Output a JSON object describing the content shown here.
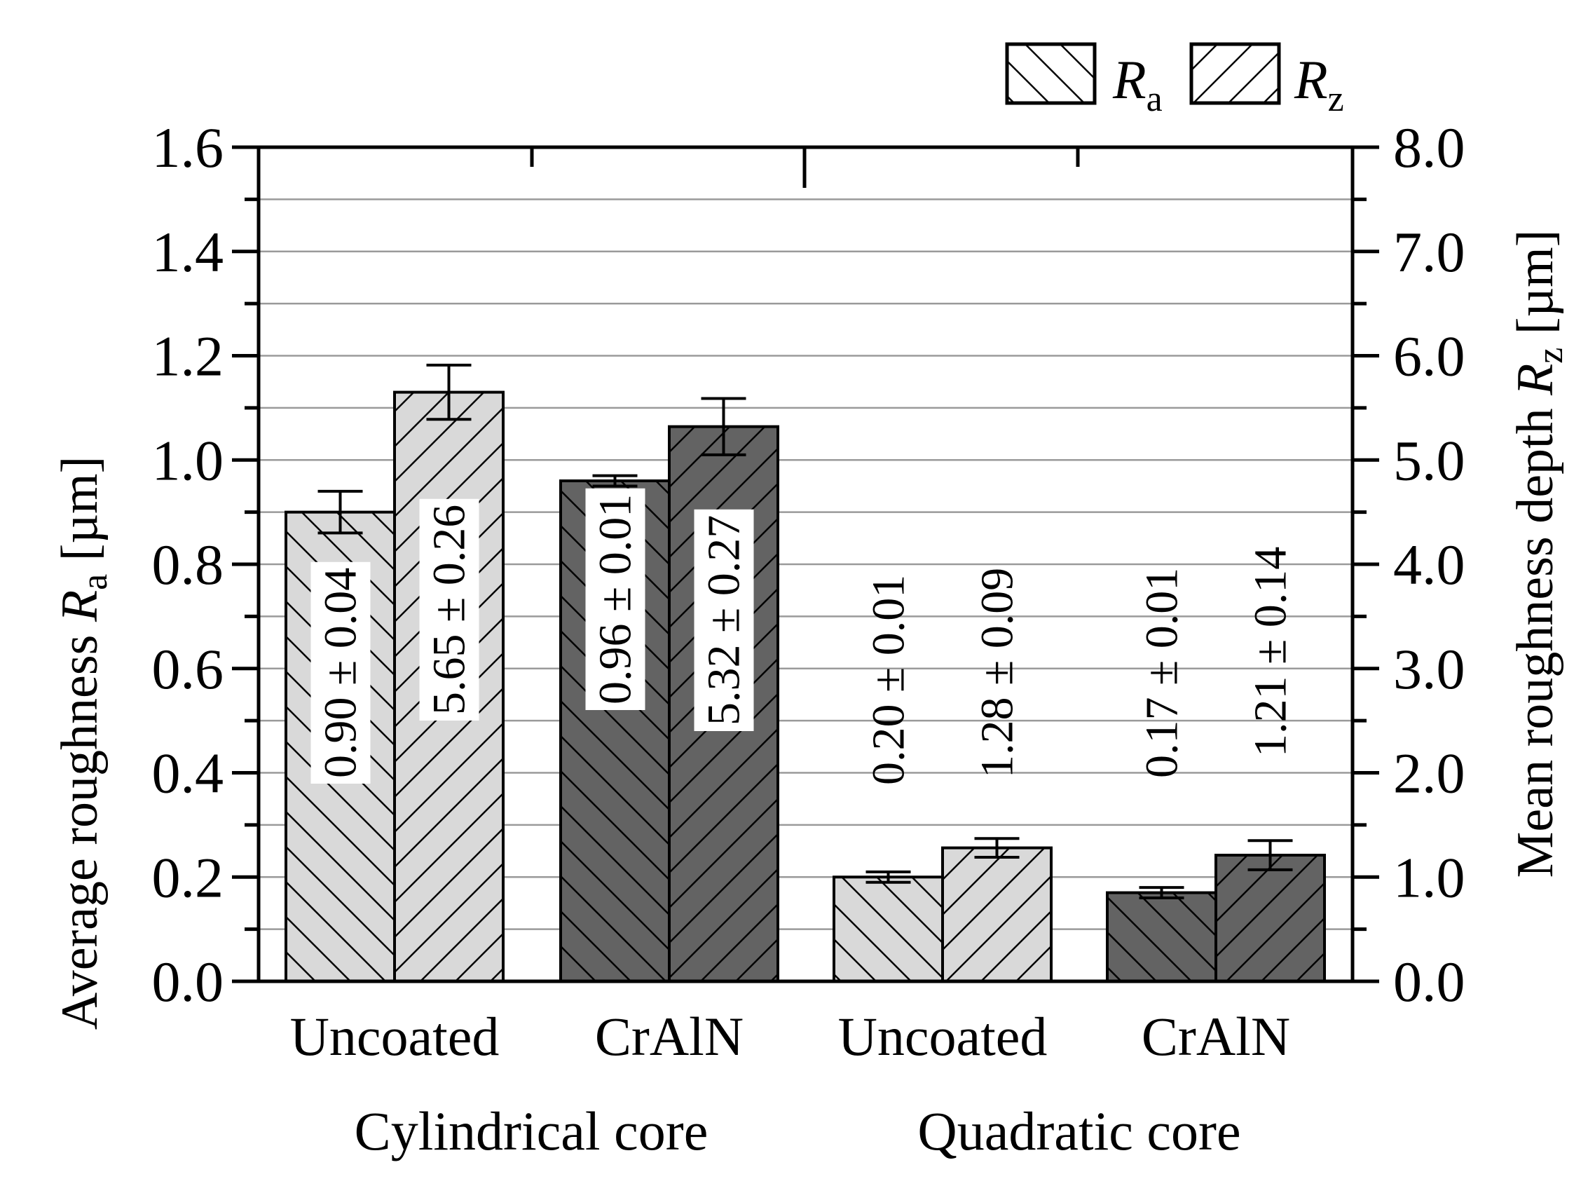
{
  "chart_data": {
    "type": "bar",
    "groups": [
      "Cylindrical core",
      "Quadratic core"
    ],
    "categories": [
      "Uncoated",
      "CrAlN",
      "Uncoated",
      "CrAlN"
    ],
    "category_colors": [
      "#d9d9d9",
      "#636363",
      "#d9d9d9",
      "#636363"
    ],
    "series": [
      {
        "name": "Ra",
        "legend_label": "R",
        "legend_sub": "a",
        "axis": "left",
        "hatch": "backslash",
        "values": [
          0.9,
          0.96,
          0.2,
          0.17
        ],
        "errors": [
          0.04,
          0.01,
          0.01,
          0.01
        ],
        "labels": [
          "0.90 ± 0.04",
          "0.96 ± 0.01",
          "0.20 ± 0.01",
          "0.17 ± 0.01"
        ]
      },
      {
        "name": "Rz",
        "legend_label": "R",
        "legend_sub": "z",
        "axis": "right",
        "hatch": "slash",
        "values": [
          5.65,
          5.32,
          1.28,
          1.21
        ],
        "errors": [
          0.26,
          0.27,
          0.09,
          0.14
        ],
        "labels": [
          "5.65 ± 0.26",
          "5.32 ± 0.27",
          "1.28 ± 0.09",
          "1.21 ± 0.14"
        ]
      }
    ],
    "y_left": {
      "label_prefix": "Average roughness ",
      "label_var": "R",
      "label_sub": "a",
      "label_suffix": " [µm]",
      "lim": [
        0.0,
        1.6
      ],
      "ticks": [
        "0.0",
        "0.2",
        "0.4",
        "0.6",
        "0.8",
        "1.0",
        "1.2",
        "1.4",
        "1.6"
      ]
    },
    "y_right": {
      "label_prefix": "Mean roughness depth ",
      "label_var": "R",
      "label_sub": "z",
      "label_suffix": " [µm]",
      "lim": [
        0.0,
        8.0
      ],
      "ticks": [
        "0.0",
        "1.0",
        "2.0",
        "3.0",
        "4.0",
        "5.0",
        "6.0",
        "7.0",
        "8.0"
      ]
    },
    "grid": true,
    "legend_position": "top-right"
  }
}
